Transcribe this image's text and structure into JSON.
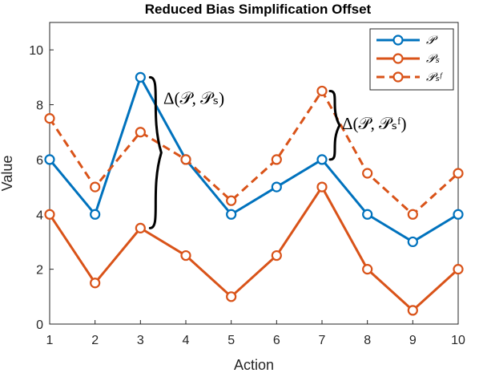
{
  "chart_data": {
    "type": "line",
    "title": "Reduced Bias Simplification Offset",
    "xlabel": "Action",
    "ylabel": "Value",
    "x": [
      1,
      2,
      3,
      4,
      5,
      6,
      7,
      8,
      9,
      10
    ],
    "xlim": [
      1,
      10
    ],
    "ylim": [
      0,
      11
    ],
    "xticks": [
      1,
      2,
      3,
      4,
      5,
      6,
      7,
      8,
      9,
      10
    ],
    "yticks": [
      0,
      2,
      4,
      6,
      8,
      10
    ],
    "grid": false,
    "legend_position": "top-right",
    "series": [
      {
        "name": "𝒫",
        "color": "#0072BD",
        "line_style": "solid",
        "marker": "circle",
        "values": [
          6,
          4,
          9,
          6,
          4,
          5,
          6,
          4,
          3,
          4
        ]
      },
      {
        "name": "𝒫ₛ",
        "color": "#D95319",
        "line_style": "solid",
        "marker": "circle",
        "values": [
          4,
          1.5,
          3.5,
          2.5,
          1,
          2.5,
          5,
          2,
          0.5,
          2
        ]
      },
      {
        "name": "𝒫ₛᶠ",
        "color": "#D95319",
        "line_style": "dashed",
        "marker": "circle",
        "values": [
          7.5,
          5,
          7,
          6,
          4.5,
          6,
          8.5,
          5.5,
          4,
          5.5
        ]
      }
    ],
    "annotations": [
      {
        "text": "Δ(𝒫, 𝒫ₛ)",
        "x": 3,
        "y_from": 3.5,
        "y_to": 9
      },
      {
        "text": "Δ(𝒫, 𝒫ₛᶠ)",
        "x": 7,
        "y_from": 6,
        "y_to": 8.5
      }
    ]
  }
}
